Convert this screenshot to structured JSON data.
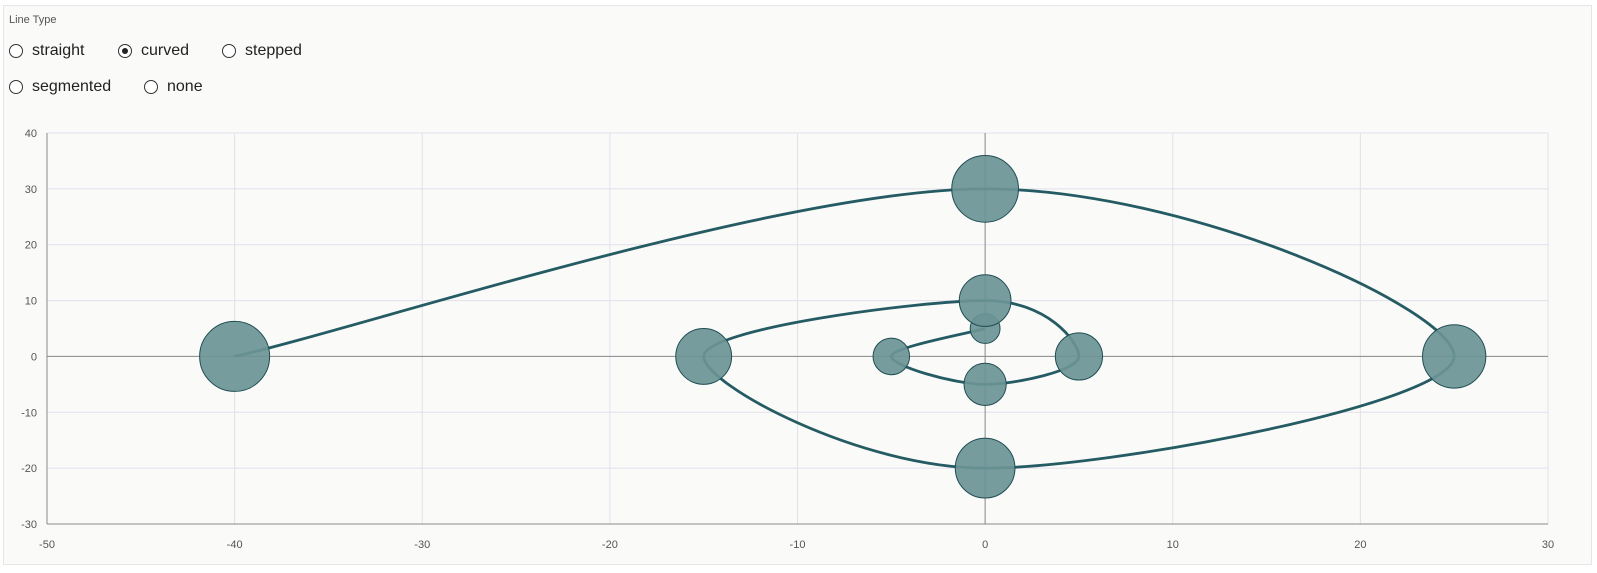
{
  "controls": {
    "group_label": "Line Type",
    "options": [
      {
        "label": "straight",
        "checked": false
      },
      {
        "label": "curved",
        "checked": true
      },
      {
        "label": "stepped",
        "checked": false
      },
      {
        "label": "segmented",
        "checked": false
      },
      {
        "label": "none",
        "checked": false
      }
    ]
  },
  "chart_data": {
    "type": "scatter",
    "variant": "bubble",
    "line_type": "curved",
    "xlim": [
      -50,
      30
    ],
    "ylim": [
      -30,
      40
    ],
    "x_ticks": [
      -50,
      -40,
      -30,
      -20,
      -10,
      0,
      10,
      20,
      30
    ],
    "y_ticks": [
      -30,
      -20,
      -10,
      0,
      10,
      20,
      30,
      40
    ],
    "grid": true,
    "colors": {
      "marker": "#6b9496",
      "marker_stroke": "#1f4d52",
      "line": "#255b63",
      "grid": "#e2e0ea",
      "axis": "#8a8a8a"
    },
    "points": [
      {
        "x": 0,
        "y": 5,
        "size": 2
      },
      {
        "x": -5,
        "y": 0,
        "size": 3
      },
      {
        "x": 0,
        "y": -5,
        "size": 4
      },
      {
        "x": 5,
        "y": 0,
        "size": 5
      },
      {
        "x": 0,
        "y": 10,
        "size": 6
      },
      {
        "x": -15,
        "y": 0,
        "size": 7
      },
      {
        "x": 0,
        "y": -20,
        "size": 8
      },
      {
        "x": 25,
        "y": 0,
        "size": 9
      },
      {
        "x": 0,
        "y": 30,
        "size": 10
      },
      {
        "x": -40,
        "y": 0,
        "size": 11
      }
    ]
  }
}
